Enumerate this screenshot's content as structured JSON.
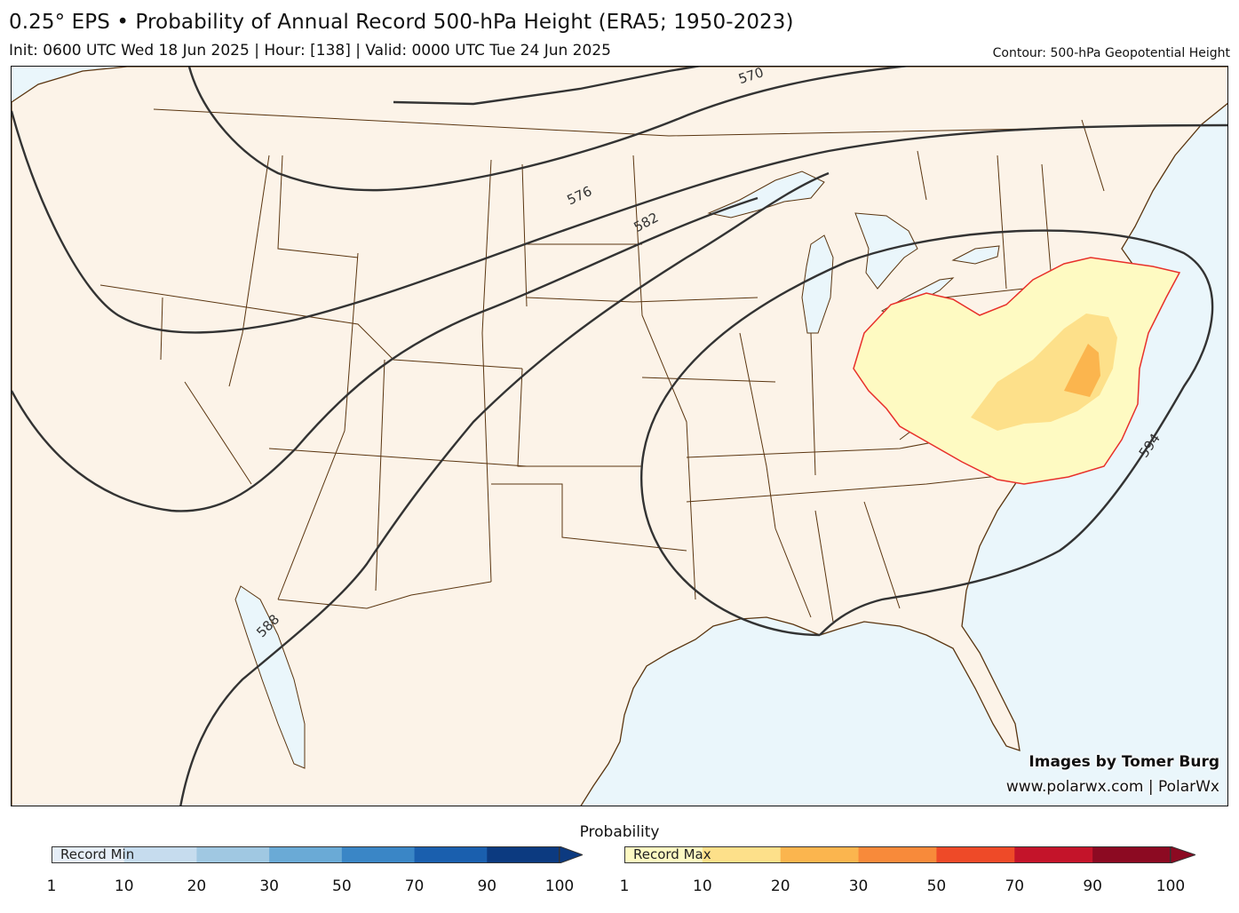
{
  "header": {
    "title": "0.25° EPS • Probability of Annual Record 500-hPa Height (ERA5; 1950-2023)",
    "subtitle": "Init: 0600 UTC Wed 18 Jun 2025 | Hour: [138] | Valid: 0000 UTC Tue 24 Jun 2025",
    "contour_note": "Contour: 500-hPa Geopotential Height"
  },
  "map": {
    "region": "Contiguous United States",
    "colors": {
      "ocean": "#eaf6fb",
      "land": "#fcf3e8",
      "borders": "#5a3510",
      "contour": "#333333",
      "outline": "#e8302a"
    },
    "contours": [
      {
        "label": "570"
      },
      {
        "label": "576"
      },
      {
        "label": "582"
      },
      {
        "label": "588"
      },
      {
        "label": "594"
      }
    ],
    "shading": {
      "note_levels": [
        "1-10",
        "10-20",
        "20-30"
      ],
      "colors": [
        "#fefac2",
        "#fde08a",
        "#fbb54e"
      ]
    }
  },
  "credits": {
    "line1": "Images by Tomer Burg",
    "line2": "www.polarwx.com | PolarWx"
  },
  "legend": {
    "title": "Probability",
    "min_bar": {
      "label": "Record Min",
      "ticks": [
        "1",
        "10",
        "20",
        "30",
        "50",
        "70",
        "90",
        "100"
      ],
      "colors": [
        "#e6eef8",
        "#c6dcee",
        "#a0c8e2",
        "#6aaad6",
        "#3a86c6",
        "#1a5fae",
        "#0c3a80"
      ]
    },
    "max_bar": {
      "label": "Record Max",
      "ticks": [
        "1",
        "10",
        "20",
        "30",
        "50",
        "70",
        "90",
        "100"
      ],
      "colors": [
        "#fefac2",
        "#fde08a",
        "#fbb54e",
        "#f88a3a",
        "#ee4a28",
        "#c4142a",
        "#8c0a22"
      ]
    }
  }
}
